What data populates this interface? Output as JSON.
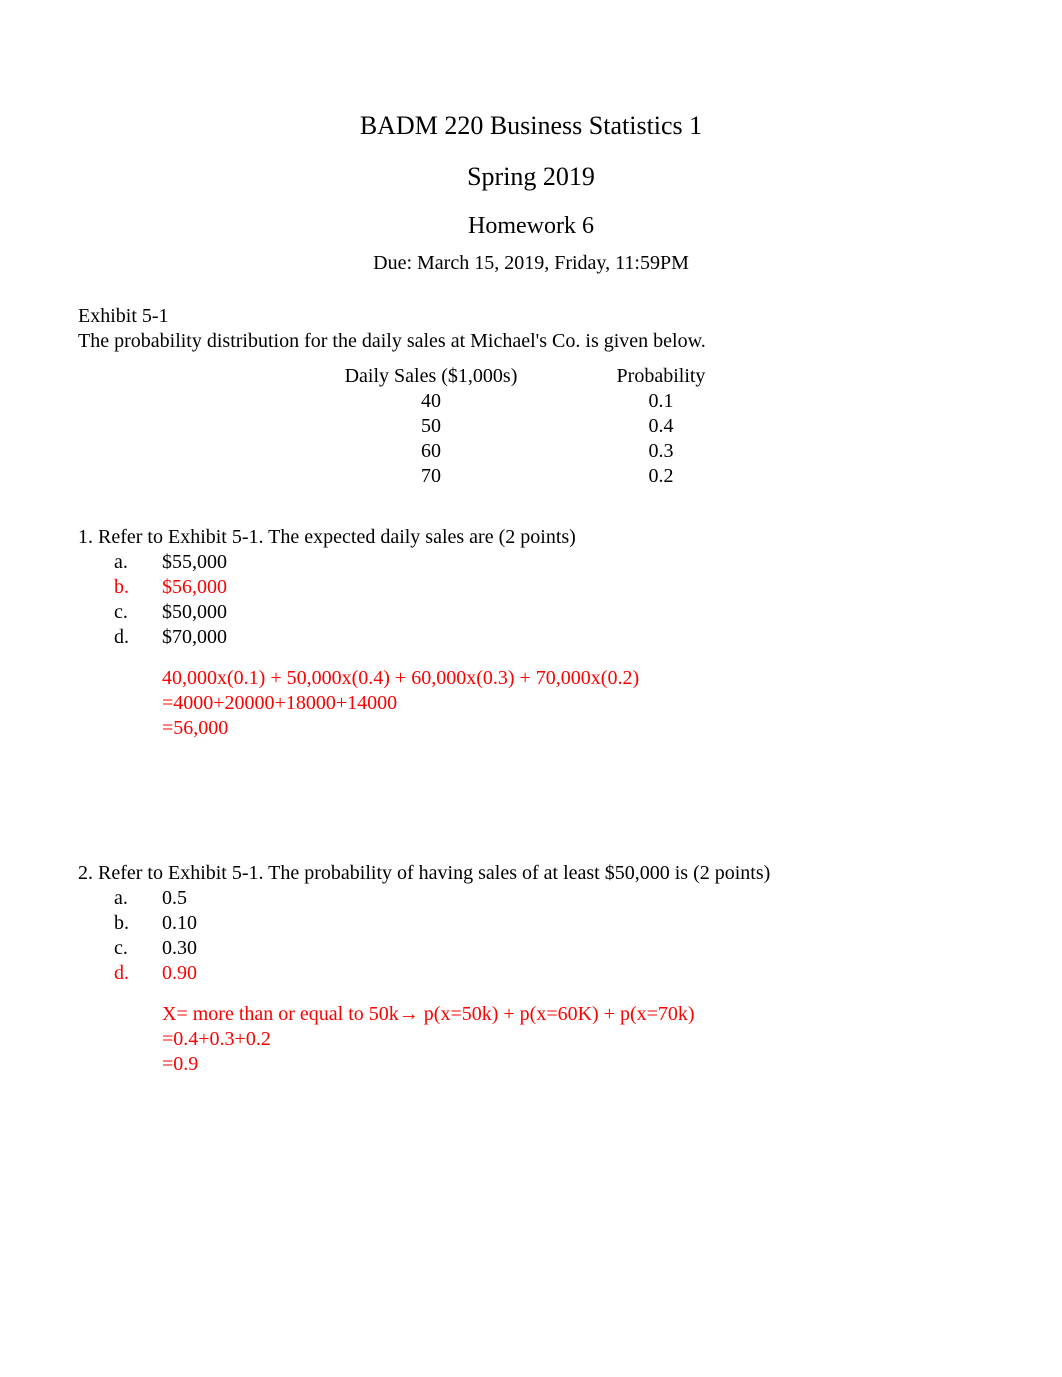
{
  "header": {
    "course": "BADM 220 Business Statistics 1",
    "term": "Spring 2019",
    "assignment": "Homework 6",
    "due": "Due: March 15, 2019, Friday, 11:59PM"
  },
  "exhibit": {
    "label": "Exhibit 5-1",
    "desc": "The probability distribution for the daily sales at Michael's Co. is given below.",
    "col1_header": "Daily Sales ($1,000s)",
    "col2_header": "Probability",
    "rows": [
      {
        "sales": "40",
        "prob": "0.1"
      },
      {
        "sales": "50",
        "prob": "0.4"
      },
      {
        "sales": "60",
        "prob": "0.3"
      },
      {
        "sales": "70",
        "prob": "0.2"
      }
    ]
  },
  "q1": {
    "stem": "1. Refer to Exhibit 5-1. The expected daily sales are (2 points)",
    "options": [
      {
        "letter": "a.",
        "text": "$55,000",
        "correct": false
      },
      {
        "letter": "b.",
        "text": "$56,000",
        "correct": true
      },
      {
        "letter": "c.",
        "text": "$50,000",
        "correct": false
      },
      {
        "letter": "d.",
        "text": "$70,000",
        "correct": false
      }
    ],
    "work": [
      "40,000x(0.1) + 50,000x(0.4) + 60,000x(0.3) + 70,000x(0.2)",
      "=4000+20000+18000+14000",
      "=56,000"
    ]
  },
  "q2": {
    "stem": "2. Refer to Exhibit 5-1. The probability of having sales of at least $50,000 is (2 points)",
    "options": [
      {
        "letter": "a.",
        "text": "0.5",
        "correct": false
      },
      {
        "letter": "b.",
        "text": "0.10",
        "correct": false
      },
      {
        "letter": "c.",
        "text": "0.30",
        "correct": false
      },
      {
        "letter": "d.",
        "text": "0.90",
        "correct": true
      }
    ],
    "work": [
      "X= more than or equal to 50k→ p(x=50k) + p(x=60K) + p(x=70k)",
      "=0.4+0.3+0.2",
      "=0.9"
    ]
  },
  "colors": {
    "text": "#000000",
    "answer": "#ff0000",
    "background": "#ffffff"
  }
}
